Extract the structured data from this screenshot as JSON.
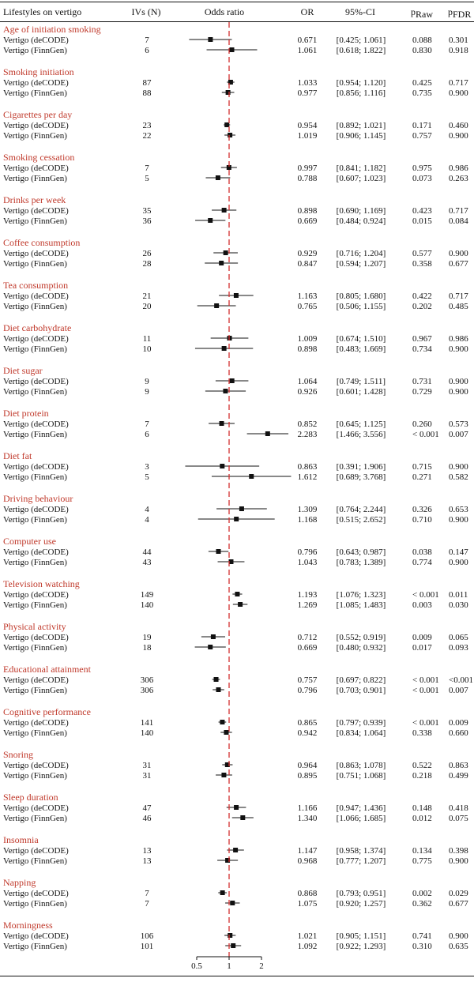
{
  "chart_data": {
    "type": "forest",
    "headers": {
      "label": "Lifestyles on vertigo",
      "ivs": "IVs (N)",
      "plot": "Odds ratio",
      "or": "OR",
      "ci": "95%-CI",
      "praw": "p",
      "praw_sub": "Raw",
      "pfdr": "p",
      "pfdr_sub": "FDR"
    },
    "x_ticks": [
      {
        "value": 0.5,
        "label": "0.5"
      },
      {
        "value": 1,
        "label": "1"
      },
      {
        "value": 2,
        "label": "2"
      }
    ],
    "x_scale": "log",
    "reference_line": 1,
    "reference_color": "#d32f2f",
    "category_color": "#c0392b",
    "groups": [
      {
        "name": "Age of initiation smoking",
        "rows": [
          {
            "label": "Vertigo (deCODE)",
            "ivs": "7",
            "or": 0.671,
            "lo": 0.425,
            "hi": 1.061,
            "or_text": "0.671",
            "ci_text": "[0.425; 1.061]",
            "praw": "0.088",
            "pfdr": "0.301"
          },
          {
            "label": "Vertigo (FinnGen)",
            "ivs": "6",
            "or": 1.061,
            "lo": 0.618,
            "hi": 1.822,
            "or_text": "1.061",
            "ci_text": "[0.618; 1.822]",
            "praw": "0.830",
            "pfdr": "0.918"
          }
        ]
      },
      {
        "name": "Smoking initiation",
        "rows": [
          {
            "label": "Vertigo (deCODE)",
            "ivs": "87",
            "or": 1.033,
            "lo": 0.954,
            "hi": 1.12,
            "or_text": "1.033",
            "ci_text": "[0.954; 1.120]",
            "praw": "0.425",
            "pfdr": "0.717"
          },
          {
            "label": "Vertigo (FinnGen)",
            "ivs": "88",
            "or": 0.977,
            "lo": 0.856,
            "hi": 1.116,
            "or_text": "0.977",
            "ci_text": "[0.856; 1.116]",
            "praw": "0.735",
            "pfdr": "0.900"
          }
        ]
      },
      {
        "name": "Cigarettes per day",
        "rows": [
          {
            "label": "Vertigo (deCODE)",
            "ivs": "23",
            "or": 0.954,
            "lo": 0.892,
            "hi": 1.021,
            "or_text": "0.954",
            "ci_text": "[0.892; 1.021]",
            "praw": "0.171",
            "pfdr": "0.460"
          },
          {
            "label": "Vertigo (FinnGen)",
            "ivs": "22",
            "or": 1.019,
            "lo": 0.906,
            "hi": 1.145,
            "or_text": "1.019",
            "ci_text": "[0.906; 1.145]",
            "praw": "0.757",
            "pfdr": "0.900"
          }
        ]
      },
      {
        "name": "Smoking cessation",
        "rows": [
          {
            "label": "Vertigo (deCODE)",
            "ivs": "7",
            "or": 0.997,
            "lo": 0.841,
            "hi": 1.182,
            "or_text": "0.997",
            "ci_text": "[0.841; 1.182]",
            "praw": "0.975",
            "pfdr": "0.986"
          },
          {
            "label": "Vertigo (FinnGen)",
            "ivs": "5",
            "or": 0.788,
            "lo": 0.607,
            "hi": 1.023,
            "or_text": "0.788",
            "ci_text": "[0.607; 1.023]",
            "praw": "0.073",
            "pfdr": "0.263"
          }
        ]
      },
      {
        "name": "Drinks per week",
        "rows": [
          {
            "label": "Vertigo (deCODE)",
            "ivs": "35",
            "or": 0.898,
            "lo": 0.69,
            "hi": 1.169,
            "or_text": "0.898",
            "ci_text": "[0.690; 1.169]",
            "praw": "0.423",
            "pfdr": "0.717"
          },
          {
            "label": "Vertigo (FinnGen)",
            "ivs": "36",
            "or": 0.669,
            "lo": 0.484,
            "hi": 0.924,
            "or_text": "0.669",
            "ci_text": "[0.484; 0.924]",
            "praw": "0.015",
            "pfdr": "0.084"
          }
        ]
      },
      {
        "name": "Coffee consumption",
        "rows": [
          {
            "label": "Vertigo (deCODE)",
            "ivs": "26",
            "or": 0.929,
            "lo": 0.716,
            "hi": 1.204,
            "or_text": "0.929",
            "ci_text": "[0.716; 1.204]",
            "praw": "0.577",
            "pfdr": "0.900"
          },
          {
            "label": "Vertigo (FinnGen)",
            "ivs": "28",
            "or": 0.847,
            "lo": 0.594,
            "hi": 1.207,
            "or_text": "0.847",
            "ci_text": "[0.594; 1.207]",
            "praw": "0.358",
            "pfdr": "0.677"
          }
        ]
      },
      {
        "name": "Tea consumption",
        "rows": [
          {
            "label": "Vertigo (deCODE)",
            "ivs": "21",
            "or": 1.163,
            "lo": 0.805,
            "hi": 1.68,
            "or_text": "1.163",
            "ci_text": "[0.805; 1.680]",
            "praw": "0.422",
            "pfdr": "0.717"
          },
          {
            "label": "Vertigo (FinnGen)",
            "ivs": "20",
            "or": 0.765,
            "lo": 0.506,
            "hi": 1.155,
            "or_text": "0.765",
            "ci_text": "[0.506; 1.155]",
            "praw": "0.202",
            "pfdr": "0.485"
          }
        ]
      },
      {
        "name": "Diet carbohydrate",
        "rows": [
          {
            "label": "Vertigo (deCODE)",
            "ivs": "11",
            "or": 1.009,
            "lo": 0.674,
            "hi": 1.51,
            "or_text": "1.009",
            "ci_text": "[0.674; 1.510]",
            "praw": "0.967",
            "pfdr": "0.986"
          },
          {
            "label": "Vertigo (FinnGen)",
            "ivs": "10",
            "or": 0.898,
            "lo": 0.483,
            "hi": 1.669,
            "or_text": "0.898",
            "ci_text": "[0.483; 1.669]",
            "praw": "0.734",
            "pfdr": "0.900"
          }
        ]
      },
      {
        "name": "Diet sugar",
        "rows": [
          {
            "label": "Vertigo (deCODE)",
            "ivs": "9",
            "or": 1.064,
            "lo": 0.749,
            "hi": 1.511,
            "or_text": "1.064",
            "ci_text": "[0.749; 1.511]",
            "praw": "0.731",
            "pfdr": "0.900"
          },
          {
            "label": "Vertigo (FinnGen)",
            "ivs": "9",
            "or": 0.926,
            "lo": 0.601,
            "hi": 1.428,
            "or_text": "0.926",
            "ci_text": "[0.601; 1.428]",
            "praw": "0.729",
            "pfdr": "0.900"
          }
        ]
      },
      {
        "name": "Diet protein",
        "rows": [
          {
            "label": "Vertigo (deCODE)",
            "ivs": "7",
            "or": 0.852,
            "lo": 0.645,
            "hi": 1.125,
            "or_text": "0.852",
            "ci_text": "[0.645; 1.125]",
            "praw": "0.260",
            "pfdr": "0.573"
          },
          {
            "label": "Vertigo (FinnGen)",
            "ivs": "6",
            "or": 2.283,
            "lo": 1.466,
            "hi": 3.556,
            "or_text": "2.283",
            "ci_text": "[1.466; 3.556]",
            "praw": "< 0.001",
            "pfdr": "0.007"
          }
        ]
      },
      {
        "name": "Diet fat",
        "rows": [
          {
            "label": "Vertigo (deCODE)",
            "ivs": "3",
            "or": 0.863,
            "lo": 0.391,
            "hi": 1.906,
            "or_text": "0.863",
            "ci_text": "[0.391; 1.906]",
            "praw": "0.715",
            "pfdr": "0.900"
          },
          {
            "label": "Vertigo (FinnGen)",
            "ivs": "5",
            "or": 1.612,
            "lo": 0.689,
            "hi": 3.768,
            "or_text": "1.612",
            "ci_text": "[0.689; 3.768]",
            "praw": "0.271",
            "pfdr": "0.582"
          }
        ]
      },
      {
        "name": "Driving behaviour",
        "rows": [
          {
            "label": "Vertigo (deCODE)",
            "ivs": "4",
            "or": 1.309,
            "lo": 0.764,
            "hi": 2.244,
            "or_text": "1.309",
            "ci_text": "[0.764; 2.244]",
            "praw": "0.326",
            "pfdr": "0.653"
          },
          {
            "label": "Vertigo (FinnGen)",
            "ivs": "4",
            "or": 1.168,
            "lo": 0.515,
            "hi": 2.652,
            "or_text": "1.168",
            "ci_text": "[0.515; 2.652]",
            "praw": "0.710",
            "pfdr": "0.900"
          }
        ]
      },
      {
        "name": "Computer use",
        "rows": [
          {
            "label": "Vertigo (deCODE)",
            "ivs": "44",
            "or": 0.796,
            "lo": 0.643,
            "hi": 0.987,
            "or_text": "0.796",
            "ci_text": "[0.643; 0.987]",
            "praw": "0.038",
            "pfdr": "0.147"
          },
          {
            "label": "Vertigo (FinnGen)",
            "ivs": "43",
            "or": 1.043,
            "lo": 0.783,
            "hi": 1.389,
            "or_text": "1.043",
            "ci_text": "[0.783; 1.389]",
            "praw": "0.774",
            "pfdr": "0.900"
          }
        ]
      },
      {
        "name": "Television watching",
        "rows": [
          {
            "label": "Vertigo (deCODE)",
            "ivs": "149",
            "or": 1.193,
            "lo": 1.076,
            "hi": 1.323,
            "or_text": "1.193",
            "ci_text": "[1.076; 1.323]",
            "praw": "< 0.001",
            "pfdr": "0.011"
          },
          {
            "label": "Vertigo (FinnGen)",
            "ivs": "140",
            "or": 1.269,
            "lo": 1.085,
            "hi": 1.483,
            "or_text": "1.269",
            "ci_text": "[1.085; 1.483]",
            "praw": "0.003",
            "pfdr": "0.030"
          }
        ]
      },
      {
        "name": "Physical activity",
        "rows": [
          {
            "label": "Vertigo (deCODE)",
            "ivs": "19",
            "or": 0.712,
            "lo": 0.552,
            "hi": 0.919,
            "or_text": "0.712",
            "ci_text": "[0.552; 0.919]",
            "praw": "0.009",
            "pfdr": "0.065"
          },
          {
            "label": "Vertigo (FinnGen)",
            "ivs": "18",
            "or": 0.669,
            "lo": 0.48,
            "hi": 0.932,
            "or_text": "0.669",
            "ci_text": "[0.480; 0.932]",
            "praw": "0.017",
            "pfdr": "0.093"
          }
        ]
      },
      {
        "name": "Educational attainment",
        "rows": [
          {
            "label": "Vertigo (deCODE)",
            "ivs": "306",
            "or": 0.757,
            "lo": 0.697,
            "hi": 0.822,
            "or_text": "0.757",
            "ci_text": "[0.697; 0.822]",
            "praw": "< 0.001",
            "pfdr": "<0.001"
          },
          {
            "label": "Vertigo (FinnGen)",
            "ivs": "306",
            "or": 0.796,
            "lo": 0.703,
            "hi": 0.901,
            "or_text": "0.796",
            "ci_text": "[0.703; 0.901]",
            "praw": "< 0.001",
            "pfdr": "0.007"
          }
        ]
      },
      {
        "name": "Cognitive performance",
        "rows": [
          {
            "label": "Vertigo (deCODE)",
            "ivs": "141",
            "or": 0.865,
            "lo": 0.797,
            "hi": 0.939,
            "or_text": "0.865",
            "ci_text": "[0.797; 0.939]",
            "praw": "< 0.001",
            "pfdr": "0.009"
          },
          {
            "label": "Vertigo (FinnGen)",
            "ivs": "140",
            "or": 0.942,
            "lo": 0.834,
            "hi": 1.064,
            "or_text": "0.942",
            "ci_text": "[0.834; 1.064]",
            "praw": "0.338",
            "pfdr": "0.660"
          }
        ]
      },
      {
        "name": "Snoring",
        "rows": [
          {
            "label": "Vertigo (deCODE)",
            "ivs": "31",
            "or": 0.964,
            "lo": 0.863,
            "hi": 1.078,
            "or_text": "0.964",
            "ci_text": "[0.863; 1.078]",
            "praw": "0.522",
            "pfdr": "0.863"
          },
          {
            "label": "Vertigo (FinnGen)",
            "ivs": "31",
            "or": 0.895,
            "lo": 0.751,
            "hi": 1.068,
            "or_text": "0.895",
            "ci_text": "[0.751; 1.068]",
            "praw": "0.218",
            "pfdr": "0.499"
          }
        ]
      },
      {
        "name": "Sleep duration",
        "rows": [
          {
            "label": "Vertigo (deCODE)",
            "ivs": "47",
            "or": 1.166,
            "lo": 0.947,
            "hi": 1.436,
            "or_text": "1.166",
            "ci_text": "[0.947; 1.436]",
            "praw": "0.148",
            "pfdr": "0.418"
          },
          {
            "label": "Vertigo (FinnGen)",
            "ivs": "46",
            "or": 1.34,
            "lo": 1.066,
            "hi": 1.685,
            "or_text": "1.340",
            "ci_text": "[1.066; 1.685]",
            "praw": "0.012",
            "pfdr": "0.075"
          }
        ]
      },
      {
        "name": "Insomnia",
        "rows": [
          {
            "label": "Vertigo (deCODE)",
            "ivs": "13",
            "or": 1.147,
            "lo": 0.958,
            "hi": 1.374,
            "or_text": "1.147",
            "ci_text": "[0.958; 1.374]",
            "praw": "0.134",
            "pfdr": "0.398"
          },
          {
            "label": "Vertigo (FinnGen)",
            "ivs": "13",
            "or": 0.968,
            "lo": 0.777,
            "hi": 1.207,
            "or_text": "0.968",
            "ci_text": "[0.777; 1.207]",
            "praw": "0.775",
            "pfdr": "0.900"
          }
        ]
      },
      {
        "name": "Napping",
        "rows": [
          {
            "label": "Vertigo (deCODE)",
            "ivs": "7",
            "or": 0.868,
            "lo": 0.793,
            "hi": 0.951,
            "or_text": "0.868",
            "ci_text": "[0.793; 0.951]",
            "praw": "0.002",
            "pfdr": "0.029"
          },
          {
            "label": "Vertigo (FinnGen)",
            "ivs": "7",
            "or": 1.075,
            "lo": 0.92,
            "hi": 1.257,
            "or_text": "1.075",
            "ci_text": "[0.920; 1.257]",
            "praw": "0.362",
            "pfdr": "0.677"
          }
        ]
      },
      {
        "name": "Morningness",
        "rows": [
          {
            "label": "Vertigo (deCODE)",
            "ivs": "106",
            "or": 1.021,
            "lo": 0.905,
            "hi": 1.151,
            "or_text": "1.021",
            "ci_text": "[0.905; 1.151]",
            "praw": "0.741",
            "pfdr": "0.900"
          },
          {
            "label": "Vertigo (FinnGen)",
            "ivs": "101",
            "or": 1.092,
            "lo": 0.922,
            "hi": 1.293,
            "or_text": "1.092",
            "ci_text": "[0.922; 1.293]",
            "praw": "0.310",
            "pfdr": "0.635"
          }
        ]
      }
    ]
  }
}
